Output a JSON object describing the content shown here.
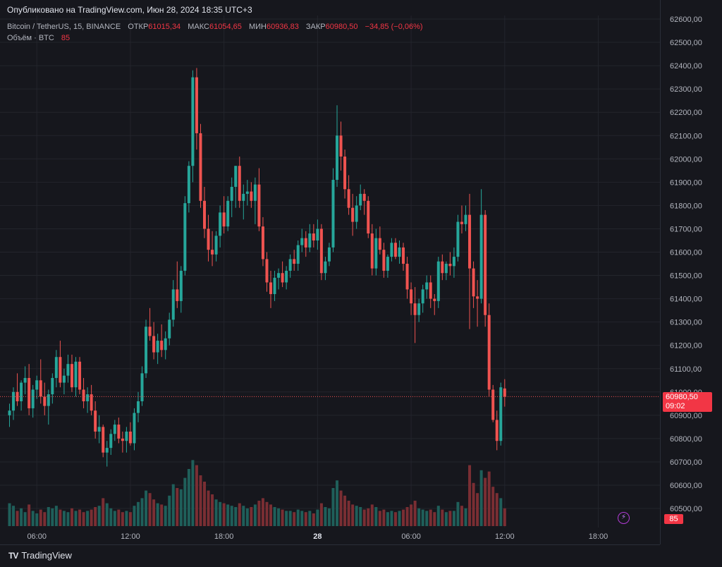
{
  "header": {
    "published": "Опубликовано на TradingView.com, Июн 28, 2024 18:35 UTC+3"
  },
  "legend": {
    "symbol": "Bitcoin / TetherUS, 15, BINANCE",
    "open_label": "ОТКР",
    "open": "61015,34",
    "high_label": "МАКС",
    "high": "61054,65",
    "low_label": "МИН",
    "low": "60936,83",
    "close_label": "ЗАКР",
    "close": "60980,50",
    "change": "−34,85 (−0,06%)",
    "volume_label": "Объём · BTC",
    "volume": "85"
  },
  "price_tag": {
    "price": "60980,50",
    "countdown": "09:02"
  },
  "volume_tag": "85",
  "brand": {
    "logo": "TV",
    "name": "TradingView"
  },
  "colors": {
    "up": "#26a69a",
    "down": "#ef5350",
    "background": "#16171d",
    "grid": "#23252c",
    "text": "#b2b5be"
  },
  "chart_data": {
    "type": "candlestick",
    "title": "Bitcoin / TetherUS, 15, BINANCE",
    "y_ticks": [
      "62600,00",
      "62500,00",
      "62400,00",
      "62300,00",
      "62200,00",
      "62100,00",
      "62000,00",
      "61900,00",
      "61800,00",
      "61700,00",
      "61600,00",
      "61500,00",
      "61400,00",
      "61300,00",
      "61200,00",
      "61100,00",
      "61000,00",
      "60900,00",
      "60800,00",
      "60700,00",
      "60600,00",
      "60500,00"
    ],
    "y_range": [
      60420,
      62640
    ],
    "x_ticks": [
      {
        "label": "06:00",
        "index": 7
      },
      {
        "label": "12:00",
        "index": 31
      },
      {
        "label": "18:00",
        "index": 55
      },
      {
        "label": "28",
        "index": 79
      },
      {
        "label": "06:00",
        "index": 103
      },
      {
        "label": "12:00",
        "index": 127
      },
      {
        "label": "18:00",
        "index": 151
      }
    ],
    "bars": [
      [
        60900,
        60950,
        60850,
        60920,
        18
      ],
      [
        60920,
        61020,
        60880,
        61000,
        16
      ],
      [
        61000,
        61080,
        60940,
        60960,
        12
      ],
      [
        60960,
        61050,
        60920,
        61040,
        14
      ],
      [
        61040,
        61110,
        60990,
        61060,
        11
      ],
      [
        61060,
        61120,
        60900,
        60930,
        17
      ],
      [
        60930,
        61030,
        60890,
        61010,
        12
      ],
      [
        61010,
        61070,
        60970,
        61050,
        10
      ],
      [
        61050,
        61140,
        60950,
        60980,
        13
      ],
      [
        60980,
        61040,
        60900,
        60940,
        11
      ],
      [
        60940,
        61010,
        60860,
        60990,
        15
      ],
      [
        60990,
        61080,
        60950,
        61060,
        14
      ],
      [
        61060,
        61180,
        61020,
        61150,
        16
      ],
      [
        61150,
        61220,
        61020,
        61040,
        13
      ],
      [
        61040,
        61100,
        60990,
        61070,
        12
      ],
      [
        61070,
        61160,
        61040,
        61120,
        11
      ],
      [
        61120,
        61160,
        61000,
        61020,
        14
      ],
      [
        61020,
        61150,
        60980,
        61130,
        12
      ],
      [
        61130,
        61150,
        60990,
        61010,
        13
      ],
      [
        61010,
        61060,
        60930,
        60960,
        11
      ],
      [
        60960,
        61020,
        60910,
        60990,
        12
      ],
      [
        60990,
        61030,
        60900,
        60920,
        13
      ],
      [
        60920,
        60960,
        60800,
        60830,
        15
      ],
      [
        60830,
        60900,
        60780,
        60850,
        16
      ],
      [
        60850,
        60860,
        60720,
        60740,
        22
      ],
      [
        60740,
        60790,
        60680,
        60760,
        18
      ],
      [
        60760,
        60840,
        60730,
        60820,
        14
      ],
      [
        60820,
        60880,
        60790,
        60860,
        12
      ],
      [
        60860,
        60890,
        60780,
        60800,
        13
      ],
      [
        60800,
        60830,
        60740,
        60790,
        11
      ],
      [
        60790,
        60850,
        60740,
        60830,
        12
      ],
      [
        60830,
        60870,
        60770,
        60780,
        11
      ],
      [
        60780,
        60930,
        60750,
        60910,
        16
      ],
      [
        60910,
        61000,
        60870,
        60960,
        19
      ],
      [
        60960,
        61110,
        60940,
        61080,
        22
      ],
      [
        61080,
        61310,
        61060,
        61280,
        28
      ],
      [
        61280,
        61360,
        61220,
        61240,
        26
      ],
      [
        61240,
        61300,
        61140,
        61170,
        21
      ],
      [
        61170,
        61250,
        61120,
        61220,
        18
      ],
      [
        61220,
        61290,
        61150,
        61180,
        17
      ],
      [
        61180,
        61260,
        61140,
        61230,
        16
      ],
      [
        61230,
        61340,
        61200,
        61310,
        24
      ],
      [
        61310,
        61480,
        61280,
        61440,
        33
      ],
      [
        61440,
        61560,
        61360,
        61390,
        30
      ],
      [
        61390,
        61540,
        61340,
        61520,
        29
      ],
      [
        61520,
        61840,
        61500,
        61810,
        38
      ],
      [
        61810,
        61990,
        61770,
        61970,
        45
      ],
      [
        61970,
        62380,
        61900,
        62350,
        52
      ],
      [
        62350,
        62390,
        62040,
        62110,
        48
      ],
      [
        62110,
        62150,
        61790,
        61820,
        40
      ],
      [
        61820,
        61880,
        61660,
        61700,
        35
      ],
      [
        61700,
        61760,
        61560,
        61610,
        28
      ],
      [
        61610,
        61690,
        61540,
        61590,
        25
      ],
      [
        61590,
        61690,
        61560,
        61670,
        21
      ],
      [
        61670,
        61800,
        61620,
        61770,
        19
      ],
      [
        61770,
        61840,
        61680,
        61710,
        18
      ],
      [
        61710,
        61840,
        61690,
        61820,
        17
      ],
      [
        61820,
        61920,
        61750,
        61880,
        16
      ],
      [
        61880,
        61970,
        61790,
        61970,
        15
      ],
      [
        61970,
        62010,
        61790,
        61820,
        18
      ],
      [
        61820,
        61890,
        61740,
        61850,
        16
      ],
      [
        61850,
        61910,
        61800,
        61860,
        14
      ],
      [
        61860,
        61900,
        61790,
        61820,
        15
      ],
      [
        61820,
        61920,
        61720,
        61890,
        17
      ],
      [
        61890,
        61960,
        61690,
        61710,
        20
      ],
      [
        61710,
        61750,
        61540,
        61570,
        22
      ],
      [
        61570,
        61600,
        61430,
        61470,
        19
      ],
      [
        61470,
        61520,
        61360,
        61420,
        17
      ],
      [
        61420,
        61520,
        61390,
        61490,
        15
      ],
      [
        61490,
        61530,
        61440,
        61510,
        14
      ],
      [
        61510,
        61560,
        61450,
        61470,
        13
      ],
      [
        61470,
        61540,
        61440,
        61520,
        12
      ],
      [
        61520,
        61590,
        61490,
        61570,
        12
      ],
      [
        61570,
        61610,
        61520,
        61550,
        11
      ],
      [
        61550,
        61650,
        61520,
        61630,
        13
      ],
      [
        61630,
        61700,
        61600,
        61660,
        12
      ],
      [
        61660,
        61690,
        61580,
        61620,
        11
      ],
      [
        61620,
        61720,
        61600,
        61680,
        12
      ],
      [
        61680,
        61720,
        61620,
        61650,
        10
      ],
      [
        61650,
        61740,
        61610,
        61700,
        13
      ],
      [
        61700,
        61720,
        61480,
        61510,
        18
      ],
      [
        61510,
        61580,
        61480,
        61560,
        15
      ],
      [
        61560,
        61640,
        61540,
        61620,
        14
      ],
      [
        61620,
        61960,
        61600,
        61910,
        30
      ],
      [
        61910,
        62230,
        61880,
        62100,
        36
      ],
      [
        62100,
        62160,
        61950,
        62010,
        28
      ],
      [
        62010,
        62040,
        61830,
        61870,
        24
      ],
      [
        61870,
        61930,
        61760,
        61790,
        20
      ],
      [
        61790,
        61850,
        61670,
        61730,
        17
      ],
      [
        61730,
        61840,
        61700,
        61800,
        16
      ],
      [
        61800,
        61890,
        61780,
        61850,
        15
      ],
      [
        61850,
        61870,
        61760,
        61820,
        13
      ],
      [
        61820,
        61840,
        61660,
        61680,
        14
      ],
      [
        61680,
        61720,
        61500,
        61530,
        17
      ],
      [
        61530,
        61700,
        61500,
        61660,
        15
      ],
      [
        61660,
        61710,
        61590,
        61610,
        12
      ],
      [
        61610,
        61640,
        61490,
        61520,
        13
      ],
      [
        61520,
        61590,
        61490,
        61580,
        11
      ],
      [
        61580,
        61660,
        61560,
        61640,
        12
      ],
      [
        61640,
        61660,
        61570,
        61580,
        11
      ],
      [
        61580,
        61650,
        61550,
        61620,
        12
      ],
      [
        61620,
        61640,
        61520,
        61550,
        13
      ],
      [
        61550,
        61580,
        61400,
        61440,
        15
      ],
      [
        61440,
        61470,
        61330,
        61380,
        17
      ],
      [
        61380,
        61450,
        61210,
        61330,
        20
      ],
      [
        61330,
        61400,
        61300,
        61380,
        14
      ],
      [
        61380,
        61460,
        61340,
        61440,
        13
      ],
      [
        61440,
        61500,
        61400,
        61470,
        12
      ],
      [
        61470,
        61500,
        61360,
        61400,
        13
      ],
      [
        61400,
        61420,
        61330,
        61390,
        11
      ],
      [
        61390,
        61580,
        61360,
        61560,
        16
      ],
      [
        61560,
        61590,
        61480,
        61510,
        13
      ],
      [
        61510,
        61560,
        61480,
        61550,
        11
      ],
      [
        61550,
        61600,
        61500,
        61540,
        12
      ],
      [
        61540,
        61620,
        61490,
        61580,
        12
      ],
      [
        61580,
        61760,
        61560,
        61730,
        19
      ],
      [
        61730,
        61800,
        61680,
        61720,
        16
      ],
      [
        61720,
        61800,
        61690,
        61760,
        14
      ],
      [
        61760,
        61850,
        61270,
        61530,
        48
      ],
      [
        61530,
        61560,
        61360,
        61410,
        34
      ],
      [
        61410,
        61480,
        61280,
        61400,
        26
      ],
      [
        61400,
        61870,
        61380,
        61760,
        44
      ],
      [
        61760,
        61780,
        61280,
        61330,
        38
      ],
      [
        61330,
        61380,
        60980,
        61010,
        43
      ],
      [
        61010,
        61030,
        60870,
        60880,
        31
      ],
      [
        60880,
        60920,
        60750,
        60790,
        26
      ],
      [
        60790,
        61040,
        60770,
        61020,
        22
      ],
      [
        61015,
        61055,
        60937,
        60980,
        14
      ]
    ]
  }
}
